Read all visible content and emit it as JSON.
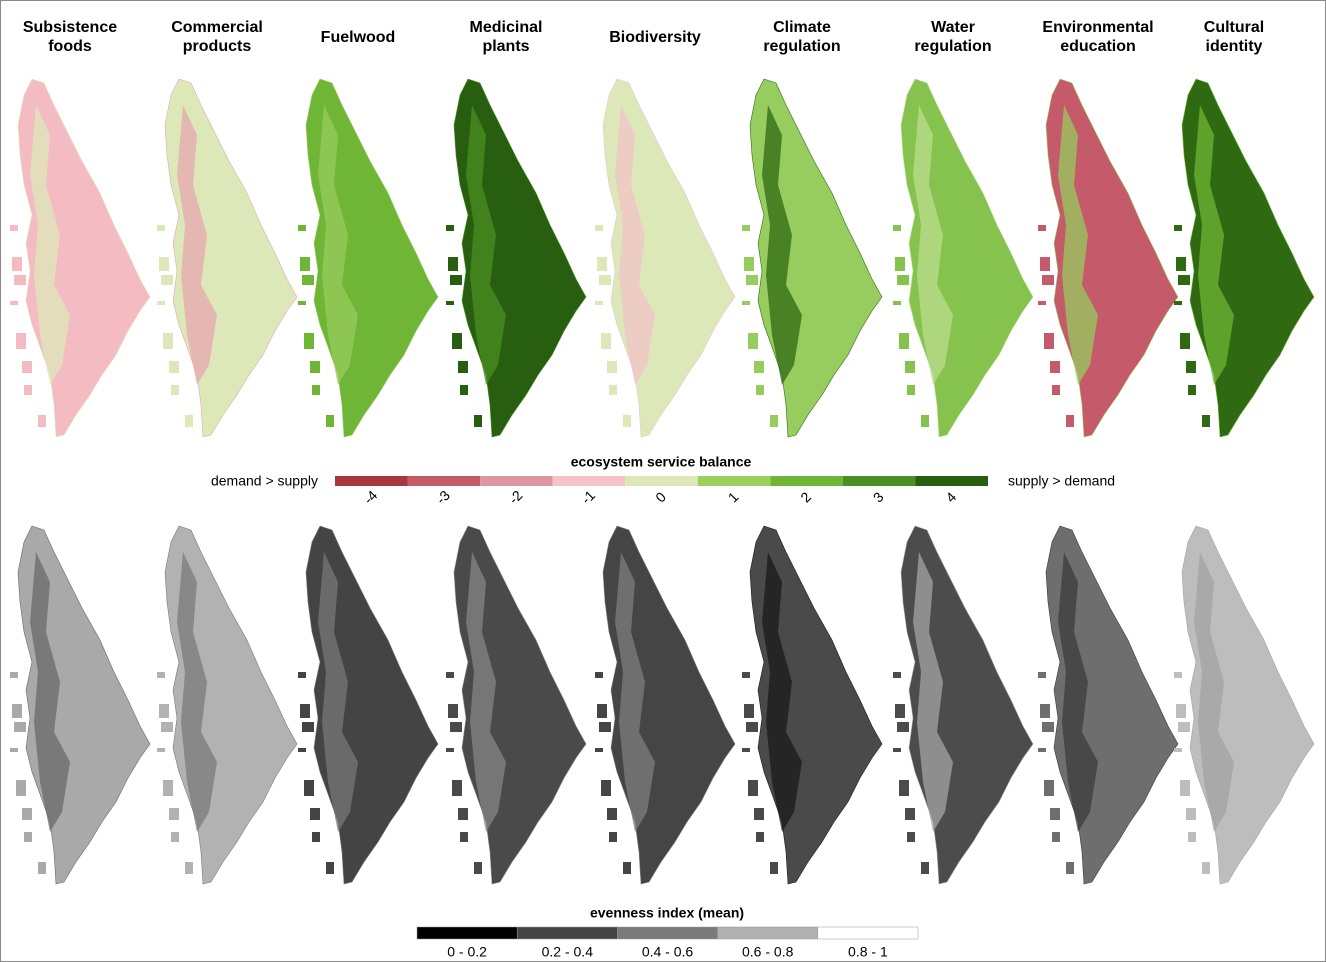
{
  "panels": [
    {
      "title": "Subsistence foods",
      "balance_colors": [
        "#f4bcc2",
        "#dde8b8"
      ],
      "evenness_colors": [
        "#a9a9a9",
        "#6a6a6a"
      ]
    },
    {
      "title": "Commercial products",
      "balance_colors": [
        "#dde8b8",
        "#e7a7b0"
      ],
      "evenness_colors": [
        "#b2b2b2",
        "#7a7a7a"
      ]
    },
    {
      "title": "Fuelwood",
      "balance_colors": [
        "#6fb536",
        "#97cc5e"
      ],
      "evenness_colors": [
        "#444444",
        "#777777"
      ]
    },
    {
      "title": "Medicinal plants",
      "balance_colors": [
        "#285e10",
        "#4b8f22"
      ],
      "evenness_colors": [
        "#4a4a4a",
        "#858585"
      ]
    },
    {
      "title": "Biodiversity",
      "balance_colors": [
        "#dde8b8",
        "#f2c3c8"
      ],
      "evenness_colors": [
        "#454545",
        "#7d7d7d"
      ]
    },
    {
      "title": "Climate regulation",
      "balance_colors": [
        "#97cc5e",
        "#2f6a13"
      ],
      "evenness_colors": [
        "#4a4a4a",
        "#1a1a1a"
      ]
    },
    {
      "title": "Water regulation",
      "balance_colors": [
        "#86c34e",
        "#b9dc8e"
      ],
      "evenness_colors": [
        "#4c4c4c",
        "#a4a4a4"
      ]
    },
    {
      "title": "Environmental education",
      "balance_colors": [
        "#c45a6a",
        "#97cc5e"
      ],
      "evenness_colors": [
        "#6e6e6e",
        "#3c3c3c"
      ]
    },
    {
      "title": "Cultural identity",
      "balance_colors": [
        "#2f6a13",
        "#6fb536"
      ],
      "evenness_colors": [
        "#bdbdbd",
        "#a3a3a3"
      ]
    }
  ],
  "balance_legend": {
    "title": "ecosystem service balance",
    "left_label": "demand > supply",
    "right_label": "supply > demand",
    "classes": [
      {
        "label": "-4",
        "color": "#a8353f"
      },
      {
        "label": "-3",
        "color": "#c45a6a"
      },
      {
        "label": "-2",
        "color": "#de96a0"
      },
      {
        "label": "-1",
        "color": "#f4c3c8"
      },
      {
        "label": "0",
        "color": "#dde8b8"
      },
      {
        "label": "1",
        "color": "#9bd05f"
      },
      {
        "label": "2",
        "color": "#6fb536"
      },
      {
        "label": "3",
        "color": "#4b8f22"
      },
      {
        "label": "4",
        "color": "#285e10"
      }
    ]
  },
  "evenness_legend": {
    "title": "evenness index (mean)",
    "classes": [
      {
        "label": "0 - 0.2",
        "color": "#000000"
      },
      {
        "label": "0.2 - 0.4",
        "color": "#444444"
      },
      {
        "label": "0.4 - 0.6",
        "color": "#7a7a7a"
      },
      {
        "label": "0.6 - 0.8",
        "color": "#b0b0b0"
      },
      {
        "label": "0.8 - 1",
        "color": "#ffffff"
      }
    ]
  }
}
